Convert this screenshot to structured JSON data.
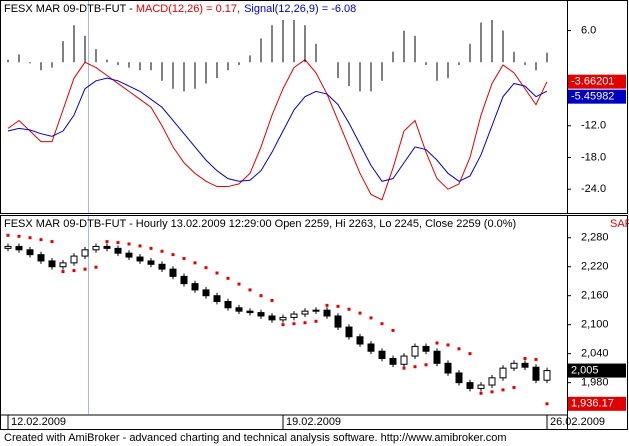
{
  "chart_data": [
    {
      "type": "line",
      "title": "FESX MAR 09-DTB-FUT - ",
      "ylim": [
        -28.5,
        8
      ],
      "yticks": [
        {
          "value": 6,
          "label": "6.0"
        },
        {
          "value": -12,
          "label": "-12.0"
        },
        {
          "value": -18,
          "label": "-18.0"
        },
        {
          "value": -24,
          "label": "-24.0"
        }
      ],
      "series": [
        {
          "name": "MACD(12,26) = 0.17,",
          "style": "line",
          "color": "#e00000",
          "last_label": "-3.66201",
          "values": [
            -12.5,
            -11,
            -13,
            -15,
            -15,
            -9,
            -3,
            0,
            -1,
            -2.5,
            -4,
            -5.5,
            -7,
            -8.5,
            -12,
            -16,
            -19,
            -21,
            -22.5,
            -23.5,
            -23.5,
            -23,
            -21,
            -16,
            -10,
            -5,
            -1,
            0.5,
            -2,
            -6,
            -11,
            -16,
            -21,
            -25,
            -26,
            -20,
            -13,
            -11,
            -17,
            -22,
            -24,
            -23,
            -18,
            -10,
            -4,
            -0.5,
            -2,
            -5,
            -8,
            -3.66201
          ]
        },
        {
          "name": "Signal(12,26,9) = -6.08",
          "style": "line",
          "color": "#0000c0",
          "last_label": "-5.45982",
          "values": [
            -13,
            -12.5,
            -12.8,
            -13.5,
            -14,
            -13,
            -10,
            -5,
            -3.5,
            -3,
            -3.5,
            -4.5,
            -5.5,
            -7,
            -8.5,
            -11,
            -13.5,
            -16,
            -18.5,
            -20.5,
            -22,
            -22.5,
            -22.3,
            -20.5,
            -17,
            -13,
            -9,
            -6.5,
            -5.5,
            -6,
            -8,
            -11.5,
            -15.5,
            -19.5,
            -22.5,
            -22,
            -19,
            -16,
            -16.5,
            -18.5,
            -21,
            -22.5,
            -21.5,
            -17.5,
            -12,
            -6.5,
            -4,
            -4.5,
            -6.5,
            -5.45982
          ]
        },
        {
          "style": "histogram",
          "color": "#000000",
          "values": [
            0.5,
            1.5,
            -0.2,
            -1.5,
            -1,
            4,
            7,
            5,
            2.5,
            0.5,
            -0.5,
            -1,
            -1.5,
            -1.5,
            -3.5,
            -5,
            -5.5,
            -5,
            -4,
            -3,
            -1.5,
            -0.5,
            1.3,
            4.5,
            7,
            8,
            8,
            7,
            3.5,
            0,
            -3,
            -4.5,
            -5.5,
            -5.5,
            -3.5,
            2,
            6,
            5,
            -0.5,
            -3.5,
            -3,
            -0.5,
            3.5,
            7.5,
            8,
            6,
            2,
            -0.5,
            -1.5,
            1.8
          ]
        }
      ]
    },
    {
      "type": "candlestick",
      "title": "FESX MAR 09-DTB-FUT - Hourly 13.02.2009 12:29:00 Open 2259, Hi 2263, Lo 2245, Close 2259 (0.0%)",
      "ylim": [
        1913,
        2325
      ],
      "yticks": [
        {
          "value": 2280,
          "label": "2,280"
        },
        {
          "value": 2220,
          "label": "2,220"
        },
        {
          "value": 2160,
          "label": "2,160"
        },
        {
          "value": 2100,
          "label": "2,100"
        },
        {
          "value": 2040,
          "label": "2,040"
        },
        {
          "value": 1980,
          "label": "1,980"
        }
      ],
      "categories": [
        "12.02.2009",
        null,
        null,
        null,
        null,
        null,
        null,
        null,
        null,
        null,
        null,
        null,
        null,
        null,
        null,
        null,
        null,
        null,
        null,
        null,
        null,
        null,
        null,
        null,
        null,
        "19.02.2009",
        null,
        null,
        null,
        null,
        null,
        null,
        null,
        null,
        null,
        null,
        null,
        null,
        null,
        null,
        null,
        null,
        null,
        null,
        null,
        null,
        null,
        null,
        null,
        "26.02.2009"
      ],
      "open": [
        2258,
        2262,
        2255,
        2245,
        2232,
        2220,
        2228,
        2242,
        2255,
        2262,
        2258,
        2248,
        2240,
        2232,
        2225,
        2215,
        2200,
        2185,
        2172,
        2160,
        2148,
        2135,
        2128,
        2125,
        2118,
        2110,
        2115,
        2122,
        2128,
        2130,
        2118,
        2095,
        2075,
        2060,
        2045,
        2030,
        2018,
        2035,
        2055,
        2045,
        2020,
        2000,
        1980,
        1968,
        1975,
        1990,
        2010,
        2020,
        2012,
        1985
      ],
      "high": [
        2268,
        2268,
        2261,
        2251,
        2238,
        2234,
        2248,
        2261,
        2268,
        2268,
        2264,
        2254,
        2246,
        2238,
        2231,
        2221,
        2206,
        2191,
        2178,
        2166,
        2154,
        2141,
        2134,
        2131,
        2124,
        2121,
        2128,
        2134,
        2136,
        2136,
        2124,
        2101,
        2081,
        2066,
        2051,
        2036,
        2041,
        2061,
        2061,
        2051,
        2026,
        2006,
        1986,
        1981,
        1996,
        2016,
        2026,
        2026,
        2018,
        2011
      ],
      "low": [
        2252,
        2249,
        2239,
        2226,
        2214,
        2214,
        2222,
        2236,
        2249,
        2252,
        2242,
        2234,
        2226,
        2219,
        2209,
        2194,
        2179,
        2166,
        2154,
        2142,
        2129,
        2122,
        2119,
        2112,
        2104,
        2104,
        2109,
        2116,
        2122,
        2112,
        2089,
        2069,
        2054,
        2039,
        2024,
        2012,
        2012,
        2029,
        2039,
        2014,
        1994,
        1974,
        1962,
        1962,
        1969,
        1984,
        2004,
        2006,
        1979,
        1979
      ],
      "close": [
        2262,
        2255,
        2245,
        2232,
        2220,
        2228,
        2242,
        2255,
        2262,
        2258,
        2248,
        2240,
        2232,
        2225,
        2215,
        2200,
        2185,
        2172,
        2160,
        2148,
        2135,
        2128,
        2125,
        2118,
        2110,
        2115,
        2122,
        2128,
        2130,
        2118,
        2095,
        2075,
        2060,
        2045,
        2030,
        2018,
        2035,
        2055,
        2045,
        2020,
        2000,
        1980,
        1968,
        1975,
        1990,
        2010,
        2020,
        2012,
        1985,
        2005
      ],
      "close_last_label": "2,005",
      "series": [
        {
          "name": "SAR",
          "color": "#e00000",
          "last_label": "1,936.17",
          "values": [
            2285,
            2283,
            2280,
            2276,
            2272,
            2210,
            2212,
            2215,
            2219,
            2272,
            2270,
            2267,
            2263,
            2258,
            2252,
            2245,
            2237,
            2228,
            2218,
            2207,
            2196,
            2184,
            2172,
            2160,
            2150,
            2100,
            2102,
            2104,
            2107,
            2140,
            2138,
            2132,
            2124,
            2114,
            2102,
            2088,
            2010,
            2013,
            2017,
            2062,
            2058,
            2050,
            2040,
            1958,
            1961,
            1965,
            1970,
            2030,
            2028,
            1936.17
          ]
        }
      ]
    }
  ],
  "footer": "Created with AmiBroker - advanced charting and technical analysis software. http://www.amibroker.com"
}
